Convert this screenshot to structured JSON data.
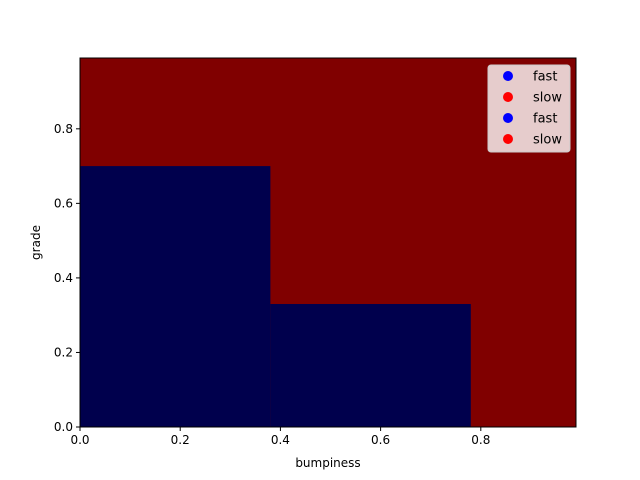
{
  "chart_data": {
    "type": "heatmap",
    "title": "",
    "xlabel": "bumpiness",
    "ylabel": "grade",
    "xlim": [
      0.0,
      0.99
    ],
    "ylim": [
      0.0,
      0.99
    ],
    "xticks": [
      0.0,
      0.2,
      0.4,
      0.6,
      0.8
    ],
    "xtick_labels": [
      "0.0",
      "0.2",
      "0.4",
      "0.6",
      "0.8"
    ],
    "yticks": [
      0.0,
      0.2,
      0.4,
      0.6,
      0.8
    ],
    "ytick_labels": [
      "0.0",
      "0.2",
      "0.4",
      "0.6",
      "0.8"
    ],
    "background_region": {
      "class": "slow",
      "color": "#800000"
    },
    "regions": [
      {
        "class": "fast",
        "color": "#00004d",
        "x": [
          0.0,
          0.38
        ],
        "y": [
          0.0,
          0.7
        ]
      },
      {
        "class": "fast",
        "color": "#00004d",
        "x": [
          0.38,
          0.78
        ],
        "y": [
          0.0,
          0.33
        ]
      }
    ],
    "legend": {
      "placement": "top-right",
      "entries": [
        {
          "label": "fast",
          "color": "#0000ff"
        },
        {
          "label": "slow",
          "color": "#ff0000"
        },
        {
          "label": "fast",
          "color": "#0000ff"
        },
        {
          "label": "slow",
          "color": "#ff0000"
        }
      ]
    },
    "grid": false
  }
}
